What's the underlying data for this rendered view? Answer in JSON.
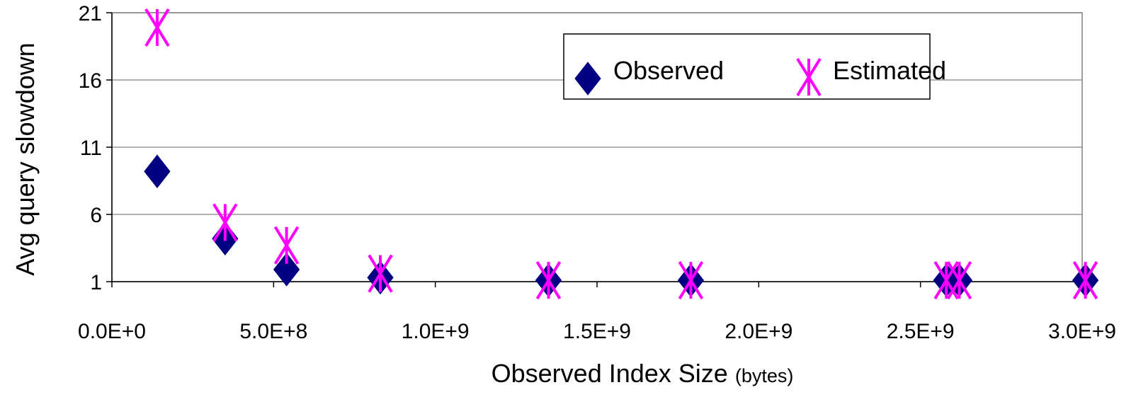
{
  "chart_data": {
    "type": "scatter",
    "title": "",
    "xlabel": "Observed Index Size",
    "xlabel_unit": "(bytes)",
    "ylabel": "Avg query slowdown",
    "xlim": [
      0,
      3000000000
    ],
    "ylim": [
      1,
      21
    ],
    "x_ticks": [
      0,
      500000000,
      1000000000,
      1500000000,
      2000000000,
      2500000000,
      3000000000
    ],
    "x_tick_labels": [
      "0.0E+0",
      "5.0E+8",
      "1.0E+9",
      "1.5E+9",
      "2.0E+9",
      "2.5E+9",
      "3.0E+9"
    ],
    "y_ticks": [
      1,
      6,
      11,
      16,
      21
    ],
    "y_tick_labels": [
      "1",
      "6",
      "11",
      "16",
      "21"
    ],
    "grid": "horizontal",
    "legend_position": "top-right",
    "series": [
      {
        "name": "Observed",
        "marker": "diamond",
        "color": "#000080",
        "points": [
          {
            "x": 140000000,
            "y": 9.2
          },
          {
            "x": 350000000,
            "y": 4.2
          },
          {
            "x": 540000000,
            "y": 1.9
          },
          {
            "x": 830000000,
            "y": 1.3
          },
          {
            "x": 1350000000,
            "y": 1.1
          },
          {
            "x": 1790000000,
            "y": 1.1
          },
          {
            "x": 2580000000,
            "y": 1.1
          },
          {
            "x": 2620000000,
            "y": 1.1
          },
          {
            "x": 3010000000,
            "y": 1.1
          }
        ]
      },
      {
        "name": "Estimated",
        "marker": "asterisk",
        "color": "#FF00FF",
        "points": [
          {
            "x": 140000000,
            "y": 19.9
          },
          {
            "x": 350000000,
            "y": 5.4
          },
          {
            "x": 540000000,
            "y": 3.7
          },
          {
            "x": 830000000,
            "y": 1.6
          },
          {
            "x": 1350000000,
            "y": 1.1
          },
          {
            "x": 1790000000,
            "y": 1.1
          },
          {
            "x": 2580000000,
            "y": 1.1
          },
          {
            "x": 2620000000,
            "y": 1.1
          },
          {
            "x": 3010000000,
            "y": 1.1
          }
        ]
      }
    ]
  }
}
